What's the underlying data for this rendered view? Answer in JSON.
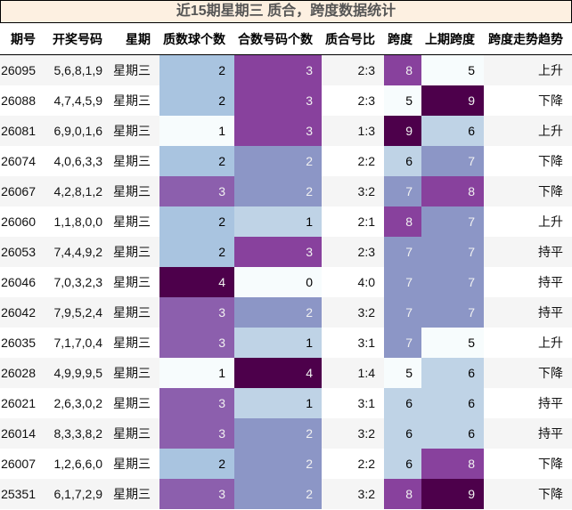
{
  "title": "近15期星期三 质合，跨度数据统计",
  "headers": [
    "期号",
    "开奖号码",
    "星期",
    "质数球个数",
    "合数号码个数",
    "质合号比",
    "跨度",
    "上期跨度",
    "跨度走势趋势"
  ],
  "colormap": {
    "name": "BuPu",
    "colors": [
      "#f7fcfd",
      "#bfd3e6",
      "#8c96c6",
      "#88419d",
      "#4d004b"
    ],
    "prime_2": "#a9c4e0",
    "prime_3": "#8c5fad"
  },
  "rows": [
    {
      "issue": "26095",
      "numbers": "5,6,8,1,9",
      "weekday": "星期三",
      "prime": "2",
      "composite": "3",
      "ratio": "2:3",
      "span": "8",
      "prev_span": "5",
      "trend": "上升"
    },
    {
      "issue": "26088",
      "numbers": "4,7,4,5,9",
      "weekday": "星期三",
      "prime": "2",
      "composite": "3",
      "ratio": "2:3",
      "span": "5",
      "prev_span": "9",
      "trend": "下降"
    },
    {
      "issue": "26081",
      "numbers": "6,9,0,1,6",
      "weekday": "星期三",
      "prime": "1",
      "composite": "3",
      "ratio": "1:3",
      "span": "9",
      "prev_span": "6",
      "trend": "上升"
    },
    {
      "issue": "26074",
      "numbers": "4,0,6,3,3",
      "weekday": "星期三",
      "prime": "2",
      "composite": "2",
      "ratio": "2:2",
      "span": "6",
      "prev_span": "7",
      "trend": "下降"
    },
    {
      "issue": "26067",
      "numbers": "4,2,8,1,2",
      "weekday": "星期三",
      "prime": "3",
      "composite": "2",
      "ratio": "3:2",
      "span": "7",
      "prev_span": "8",
      "trend": "下降"
    },
    {
      "issue": "26060",
      "numbers": "1,1,8,0,0",
      "weekday": "星期三",
      "prime": "2",
      "composite": "1",
      "ratio": "2:1",
      "span": "8",
      "prev_span": "7",
      "trend": "上升"
    },
    {
      "issue": "26053",
      "numbers": "7,4,4,9,2",
      "weekday": "星期三",
      "prime": "2",
      "composite": "3",
      "ratio": "2:3",
      "span": "7",
      "prev_span": "7",
      "trend": "持平"
    },
    {
      "issue": "26046",
      "numbers": "7,0,3,2,3",
      "weekday": "星期三",
      "prime": "4",
      "composite": "0",
      "ratio": "4:0",
      "span": "7",
      "prev_span": "7",
      "trend": "持平"
    },
    {
      "issue": "26042",
      "numbers": "7,9,5,2,4",
      "weekday": "星期三",
      "prime": "3",
      "composite": "2",
      "ratio": "3:2",
      "span": "7",
      "prev_span": "7",
      "trend": "持平"
    },
    {
      "issue": "26035",
      "numbers": "7,1,7,0,4",
      "weekday": "星期三",
      "prime": "3",
      "composite": "1",
      "ratio": "3:1",
      "span": "7",
      "prev_span": "5",
      "trend": "上升"
    },
    {
      "issue": "26028",
      "numbers": "4,9,9,9,5",
      "weekday": "星期三",
      "prime": "1",
      "composite": "4",
      "ratio": "1:4",
      "span": "5",
      "prev_span": "6",
      "trend": "下降"
    },
    {
      "issue": "26021",
      "numbers": "2,6,3,0,2",
      "weekday": "星期三",
      "prime": "3",
      "composite": "1",
      "ratio": "3:1",
      "span": "6",
      "prev_span": "6",
      "trend": "持平"
    },
    {
      "issue": "26014",
      "numbers": "8,3,3,8,2",
      "weekday": "星期三",
      "prime": "3",
      "composite": "2",
      "ratio": "3:2",
      "span": "6",
      "prev_span": "6",
      "trend": "持平"
    },
    {
      "issue": "26007",
      "numbers": "1,2,6,6,0",
      "weekday": "星期三",
      "prime": "2",
      "composite": "2",
      "ratio": "2:2",
      "span": "6",
      "prev_span": "8",
      "trend": "下降"
    },
    {
      "issue": "25351",
      "numbers": "6,1,7,2,9",
      "weekday": "星期三",
      "prime": "3",
      "composite": "2",
      "ratio": "3:2",
      "span": "8",
      "prev_span": "9",
      "trend": "下降"
    }
  ]
}
